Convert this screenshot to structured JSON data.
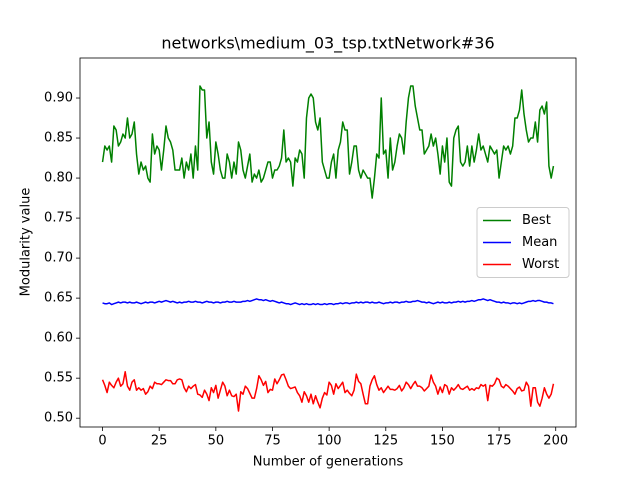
{
  "chart_data": {
    "type": "line",
    "title": "networks\\medium_03_tsp.txtNetwork#36",
    "x_label": "Number of generations",
    "y_label": "Modularity value",
    "xlim": [
      -9.95,
      208.95
    ],
    "xticks": [
      0,
      25,
      50,
      75,
      100,
      125,
      150,
      175,
      200
    ],
    "ylim": [
      0.489,
      0.95
    ],
    "yticks": [
      {
        "value": 0.5,
        "label": "0.50"
      },
      {
        "value": 0.55,
        "label": "0.55"
      },
      {
        "value": 0.6,
        "label": "0.60"
      },
      {
        "value": 0.65,
        "label": "0.65"
      },
      {
        "value": 0.7,
        "label": "0.70"
      },
      {
        "value": 0.75,
        "label": "0.75"
      },
      {
        "value": 0.8,
        "label": "0.80"
      },
      {
        "value": 0.85,
        "label": "0.85"
      },
      {
        "value": 0.9,
        "label": "0.90"
      }
    ],
    "legend": "center right",
    "grid": false,
    "x": [
      0,
      1,
      2,
      3,
      4,
      5,
      6,
      7,
      8,
      9,
      10,
      11,
      12,
      13,
      14,
      15,
      16,
      17,
      18,
      19,
      20,
      21,
      22,
      23,
      24,
      25,
      26,
      27,
      28,
      29,
      30,
      31,
      32,
      33,
      34,
      35,
      36,
      37,
      38,
      39,
      40,
      41,
      42,
      43,
      44,
      45,
      46,
      47,
      48,
      49,
      50,
      51,
      52,
      53,
      54,
      55,
      56,
      57,
      58,
      59,
      60,
      61,
      62,
      63,
      64,
      65,
      66,
      67,
      68,
      69,
      70,
      71,
      72,
      73,
      74,
      75,
      76,
      77,
      78,
      79,
      80,
      81,
      82,
      83,
      84,
      85,
      86,
      87,
      88,
      89,
      90,
      91,
      92,
      93,
      94,
      95,
      96,
      97,
      98,
      99,
      100,
      101,
      102,
      103,
      104,
      105,
      106,
      107,
      108,
      109,
      110,
      111,
      112,
      113,
      114,
      115,
      116,
      117,
      118,
      119,
      120,
      121,
      122,
      123,
      124,
      125,
      126,
      127,
      128,
      129,
      130,
      131,
      132,
      133,
      134,
      135,
      136,
      137,
      138,
      139,
      140,
      141,
      142,
      143,
      144,
      145,
      146,
      147,
      148,
      149,
      150,
      151,
      152,
      153,
      154,
      155,
      156,
      157,
      158,
      159,
      160,
      161,
      162,
      163,
      164,
      165,
      166,
      167,
      168,
      169,
      170,
      171,
      172,
      173,
      174,
      175,
      176,
      177,
      178,
      179,
      180,
      181,
      182,
      183,
      184,
      185,
      186,
      187,
      188,
      189,
      190,
      191,
      192,
      193,
      194,
      195,
      196,
      197,
      198,
      199
    ],
    "series": [
      {
        "name": "Best",
        "color": "#008000",
        "values": [
          0.82,
          0.84,
          0.835,
          0.84,
          0.82,
          0.865,
          0.86,
          0.84,
          0.845,
          0.855,
          0.85,
          0.875,
          0.85,
          0.855,
          0.87,
          0.83,
          0.805,
          0.82,
          0.81,
          0.815,
          0.8,
          0.795,
          0.855,
          0.83,
          0.84,
          0.835,
          0.81,
          0.835,
          0.865,
          0.85,
          0.845,
          0.835,
          0.81,
          0.81,
          0.81,
          0.825,
          0.8,
          0.82,
          0.81,
          0.83,
          0.8,
          0.84,
          0.81,
          0.915,
          0.91,
          0.91,
          0.85,
          0.87,
          0.82,
          0.805,
          0.845,
          0.83,
          0.81,
          0.8,
          0.8,
          0.83,
          0.82,
          0.8,
          0.82,
          0.805,
          0.845,
          0.835,
          0.81,
          0.8,
          0.815,
          0.83,
          0.795,
          0.805,
          0.8,
          0.81,
          0.795,
          0.8,
          0.81,
          0.82,
          0.82,
          0.8,
          0.81,
          0.81,
          0.815,
          0.825,
          0.86,
          0.82,
          0.825,
          0.82,
          0.79,
          0.825,
          0.82,
          0.835,
          0.83,
          0.8,
          0.875,
          0.9,
          0.905,
          0.9,
          0.87,
          0.86,
          0.875,
          0.82,
          0.81,
          0.8,
          0.8,
          0.82,
          0.83,
          0.8,
          0.835,
          0.845,
          0.87,
          0.86,
          0.86,
          0.805,
          0.82,
          0.84,
          0.84,
          0.81,
          0.8,
          0.81,
          0.805,
          0.8,
          0.8,
          0.775,
          0.8,
          0.83,
          0.825,
          0.9,
          0.83,
          0.835,
          0.8,
          0.85,
          0.81,
          0.82,
          0.84,
          0.855,
          0.85,
          0.83,
          0.87,
          0.9,
          0.915,
          0.915,
          0.89,
          0.875,
          0.86,
          0.86,
          0.83,
          0.835,
          0.84,
          0.855,
          0.84,
          0.85,
          0.83,
          0.805,
          0.84,
          0.82,
          0.85,
          0.795,
          0.79,
          0.85,
          0.86,
          0.865,
          0.82,
          0.815,
          0.82,
          0.84,
          0.815,
          0.84,
          0.82,
          0.835,
          0.855,
          0.835,
          0.84,
          0.83,
          0.82,
          0.84,
          0.835,
          0.83,
          0.835,
          0.8,
          0.82,
          0.84,
          0.835,
          0.84,
          0.83,
          0.84,
          0.875,
          0.875,
          0.885,
          0.91,
          0.88,
          0.86,
          0.845,
          0.85,
          0.85,
          0.87,
          0.845,
          0.885,
          0.89,
          0.88,
          0.895,
          0.815,
          0.8,
          0.815
        ]
      },
      {
        "name": "Mean",
        "color": "#0000ff",
        "values": [
          0.644,
          0.643,
          0.643,
          0.644,
          0.642,
          0.643,
          0.644,
          0.645,
          0.644,
          0.645,
          0.645,
          0.644,
          0.645,
          0.644,
          0.644,
          0.645,
          0.644,
          0.643,
          0.644,
          0.645,
          0.644,
          0.645,
          0.645,
          0.644,
          0.645,
          0.646,
          0.645,
          0.646,
          0.647,
          0.646,
          0.645,
          0.646,
          0.645,
          0.644,
          0.645,
          0.644,
          0.645,
          0.645,
          0.646,
          0.645,
          0.645,
          0.646,
          0.645,
          0.645,
          0.644,
          0.645,
          0.646,
          0.645,
          0.645,
          0.644,
          0.645,
          0.645,
          0.644,
          0.645,
          0.645,
          0.646,
          0.645,
          0.645,
          0.646,
          0.645,
          0.645,
          0.645,
          0.646,
          0.646,
          0.647,
          0.646,
          0.647,
          0.648,
          0.649,
          0.648,
          0.648,
          0.647,
          0.648,
          0.647,
          0.646,
          0.647,
          0.646,
          0.645,
          0.644,
          0.645,
          0.644,
          0.643,
          0.643,
          0.642,
          0.643,
          0.644,
          0.643,
          0.642,
          0.643,
          0.642,
          0.643,
          0.642,
          0.642,
          0.643,
          0.642,
          0.643,
          0.642,
          0.642,
          0.643,
          0.642,
          0.643,
          0.643,
          0.642,
          0.643,
          0.643,
          0.644,
          0.643,
          0.644,
          0.644,
          0.643,
          0.644,
          0.644,
          0.645,
          0.644,
          0.645,
          0.644,
          0.645,
          0.645,
          0.644,
          0.645,
          0.644,
          0.644,
          0.645,
          0.644,
          0.643,
          0.644,
          0.644,
          0.645,
          0.644,
          0.645,
          0.645,
          0.644,
          0.645,
          0.645,
          0.646,
          0.645,
          0.645,
          0.646,
          0.646,
          0.647,
          0.646,
          0.645,
          0.645,
          0.644,
          0.645,
          0.644,
          0.643,
          0.644,
          0.645,
          0.644,
          0.645,
          0.644,
          0.644,
          0.645,
          0.644,
          0.645,
          0.645,
          0.646,
          0.645,
          0.646,
          0.645,
          0.646,
          0.646,
          0.647,
          0.646,
          0.647,
          0.648,
          0.648,
          0.649,
          0.648,
          0.647,
          0.648,
          0.647,
          0.646,
          0.645,
          0.645,
          0.644,
          0.645,
          0.644,
          0.644,
          0.643,
          0.644,
          0.644,
          0.643,
          0.644,
          0.643,
          0.644,
          0.645,
          0.646,
          0.646,
          0.647,
          0.646,
          0.647,
          0.647,
          0.646,
          0.645,
          0.645,
          0.644,
          0.644,
          0.643
        ]
      },
      {
        "name": "Worst",
        "color": "#ff0000",
        "values": [
          0.548,
          0.541,
          0.532,
          0.545,
          0.541,
          0.538,
          0.545,
          0.55,
          0.54,
          0.543,
          0.558,
          0.54,
          0.535,
          0.545,
          0.548,
          0.535,
          0.538,
          0.535,
          0.537,
          0.53,
          0.533,
          0.54,
          0.537,
          0.545,
          0.543,
          0.543,
          0.542,
          0.545,
          0.548,
          0.547,
          0.547,
          0.543,
          0.543,
          0.548,
          0.549,
          0.548,
          0.538,
          0.533,
          0.54,
          0.537,
          0.54,
          0.542,
          0.53,
          0.529,
          0.526,
          0.535,
          0.53,
          0.522,
          0.538,
          0.532,
          0.541,
          0.525,
          0.535,
          0.545,
          0.54,
          0.528,
          0.535,
          0.528,
          0.527,
          0.53,
          0.509,
          0.533,
          0.53,
          0.54,
          0.537,
          0.531,
          0.525,
          0.525,
          0.537,
          0.553,
          0.548,
          0.541,
          0.546,
          0.532,
          0.536,
          0.535,
          0.549,
          0.543,
          0.548,
          0.554,
          0.555,
          0.548,
          0.54,
          0.537,
          0.538,
          0.539,
          0.532,
          0.528,
          0.52,
          0.533,
          0.528,
          0.52,
          0.53,
          0.518,
          0.528,
          0.52,
          0.513,
          0.525,
          0.532,
          0.529,
          0.545,
          0.541,
          0.53,
          0.543,
          0.537,
          0.541,
          0.545,
          0.532,
          0.535,
          0.531,
          0.528,
          0.535,
          0.555,
          0.546,
          0.543,
          0.53,
          0.518,
          0.518,
          0.54,
          0.548,
          0.553,
          0.542,
          0.535,
          0.538,
          0.532,
          0.536,
          0.54,
          0.536,
          0.536,
          0.535,
          0.537,
          0.541,
          0.534,
          0.538,
          0.545,
          0.542,
          0.537,
          0.542,
          0.546,
          0.54,
          0.54,
          0.538,
          0.534,
          0.537,
          0.54,
          0.554,
          0.545,
          0.54,
          0.53,
          0.539,
          0.532,
          0.542,
          0.54,
          0.53,
          0.538,
          0.535,
          0.538,
          0.542,
          0.537,
          0.536,
          0.538,
          0.54,
          0.535,
          0.537,
          0.535,
          0.538,
          0.537,
          0.542,
          0.54,
          0.542,
          0.522,
          0.541,
          0.54,
          0.543,
          0.55,
          0.548,
          0.54,
          0.538,
          0.542,
          0.54,
          0.537,
          0.534,
          0.53,
          0.537,
          0.539,
          0.534,
          0.535,
          0.545,
          0.54,
          0.515,
          0.538,
          0.538,
          0.52,
          0.515,
          0.525,
          0.538,
          0.53,
          0.525,
          0.53,
          0.543
        ]
      }
    ]
  }
}
